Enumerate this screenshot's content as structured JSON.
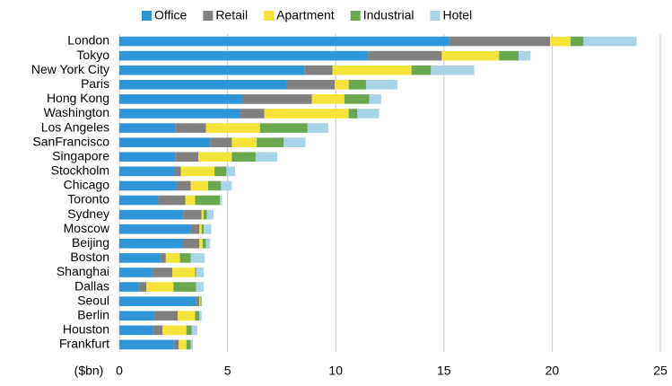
{
  "chart_data": {
    "type": "stacked-hbar",
    "x_label": "($bn)",
    "categories": [
      "London",
      "Tokyo",
      "New York City",
      "Paris",
      "Hong Kong",
      "Washington",
      "Los Angeles",
      "SanFrancisco",
      "Singapore",
      "Stockholm",
      "Chicago",
      "Toronto",
      "Sydney",
      "Moscow",
      "Beijing",
      "Boston",
      "Shanghai",
      "Dallas",
      "Seoul",
      "Berlin",
      "Houston",
      "Frankfurt"
    ],
    "series": [
      {
        "name": "Office",
        "color": "#2e95d8",
        "values": [
          15.25,
          11.5,
          8.55,
          7.75,
          5.7,
          5.6,
          2.6,
          4.2,
          2.6,
          2.55,
          2.65,
          1.8,
          2.95,
          3.3,
          2.9,
          1.9,
          1.5,
          0.9,
          3.55,
          1.6,
          1.55,
          2.5
        ]
      },
      {
        "name": "Retail",
        "color": "#808080",
        "values": [
          4.65,
          3.4,
          1.3,
          2.2,
          3.2,
          1.1,
          1.4,
          1.0,
          1.05,
          0.3,
          0.65,
          1.25,
          0.85,
          0.4,
          0.8,
          0.25,
          0.95,
          0.35,
          0.15,
          1.1,
          0.45,
          0.25
        ]
      },
      {
        "name": "Apartment",
        "color": "#f6e339",
        "values": [
          0.95,
          2.65,
          3.65,
          0.65,
          1.5,
          3.9,
          2.5,
          1.15,
          1.55,
          1.55,
          0.8,
          0.45,
          0.1,
          0.1,
          0.15,
          0.65,
          1.05,
          1.25,
          0.05,
          0.8,
          1.1,
          0.35
        ]
      },
      {
        "name": "Industrial",
        "color": "#6aa84f",
        "values": [
          0.6,
          0.9,
          0.9,
          0.8,
          1.15,
          0.4,
          2.2,
          1.25,
          1.1,
          0.55,
          0.6,
          1.15,
          0.15,
          0.1,
          0.15,
          0.5,
          0.05,
          1.05,
          0.05,
          0.2,
          0.25,
          0.2
        ]
      },
      {
        "name": "Hotel",
        "color": "#a9d3e8",
        "values": [
          2.45,
          0.55,
          2.0,
          1.45,
          0.55,
          1.0,
          0.95,
          1.0,
          1.0,
          0.4,
          0.5,
          0.1,
          0.3,
          0.35,
          0.2,
          0.65,
          0.35,
          0.35,
          0,
          0.1,
          0.25,
          0.1
        ]
      }
    ],
    "xlim": [
      0,
      25
    ],
    "xticks": [
      0,
      5,
      10,
      15,
      20,
      25
    ],
    "grid": true
  }
}
